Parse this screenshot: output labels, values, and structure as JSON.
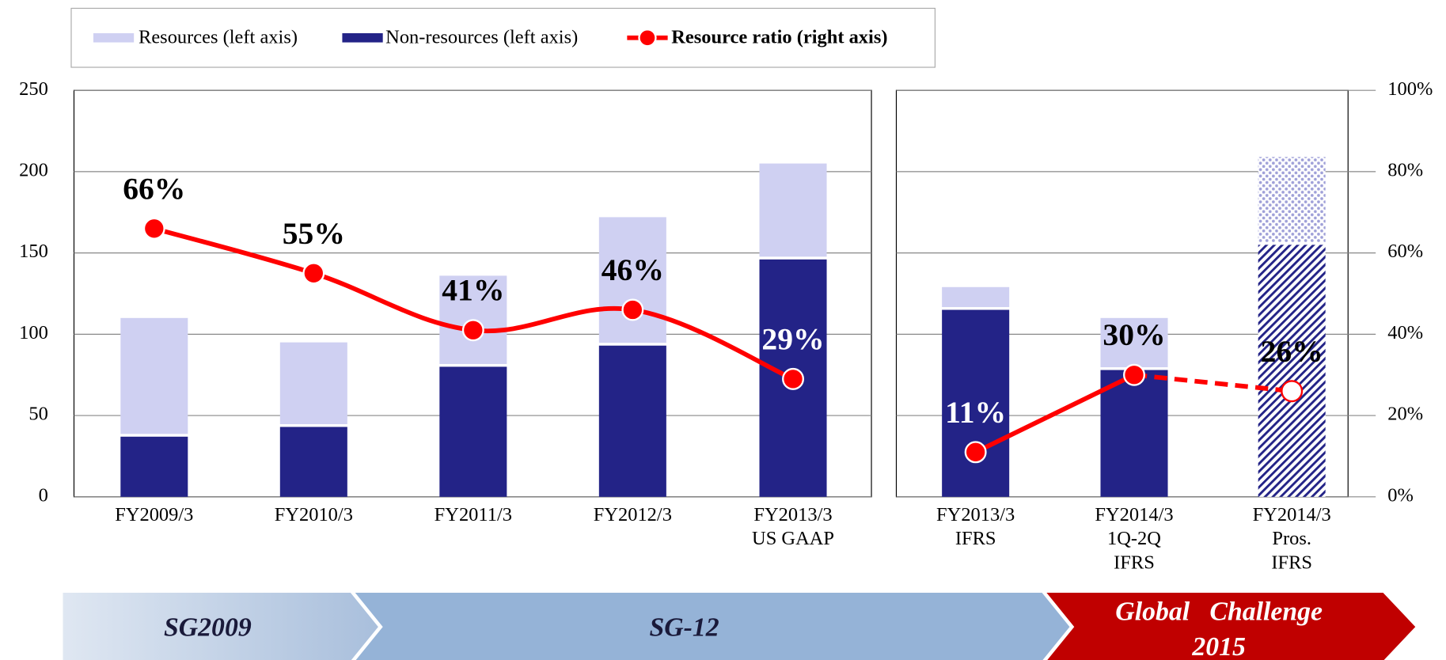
{
  "chart_data": {
    "type": "bar_line",
    "categories": [
      [
        "FY2009/3"
      ],
      [
        "FY2010/3"
      ],
      [
        "FY2011/3"
      ],
      [
        "FY2012/3"
      ],
      [
        "FY2013/3",
        "US GAAP"
      ],
      [
        "FY2013/3",
        "IFRS"
      ],
      [
        "FY2014/3",
        "1Q-2Q",
        "IFRS"
      ],
      [
        "FY2014/3",
        "Pros.",
        "IFRS"
      ]
    ],
    "series": [
      {
        "name": "Resources (left axis)",
        "color": "#cfd0f2",
        "values": [
          73,
          52,
          56,
          79,
          59,
          14,
          32,
          54
        ]
      },
      {
        "name": "Non-resources (left axis)",
        "color": "#232387",
        "values": [
          37,
          43,
          80,
          93,
          146,
          115,
          78,
          155
        ]
      },
      {
        "name": "Resource ratio (right axis)",
        "color": "#ff0000",
        "axis": "y2",
        "values": [
          66,
          55,
          41,
          46,
          29,
          11,
          30,
          26
        ],
        "value_labels": [
          "66%",
          "55%",
          "41%",
          "46%",
          "29%",
          "11%",
          "30%",
          "26%"
        ]
      }
    ],
    "ylim": [
      0,
      250
    ],
    "yticks": [
      0,
      50,
      100,
      150,
      200,
      250
    ],
    "y2lim": [
      0,
      100
    ],
    "y2ticks": [
      {
        "value": 0,
        "label": "0%"
      },
      {
        "value": 20,
        "label": "20%"
      },
      {
        "value": 40,
        "label": "40%"
      },
      {
        "value": 60,
        "label": "60%"
      },
      {
        "value": 80,
        "label": "80%"
      },
      {
        "value": 100,
        "label": "100%"
      }
    ],
    "grid": true
  },
  "phases": [
    [
      "SG2009"
    ],
    [
      "SG-12"
    ],
    [
      "Global   Challenge",
      "2015"
    ]
  ]
}
